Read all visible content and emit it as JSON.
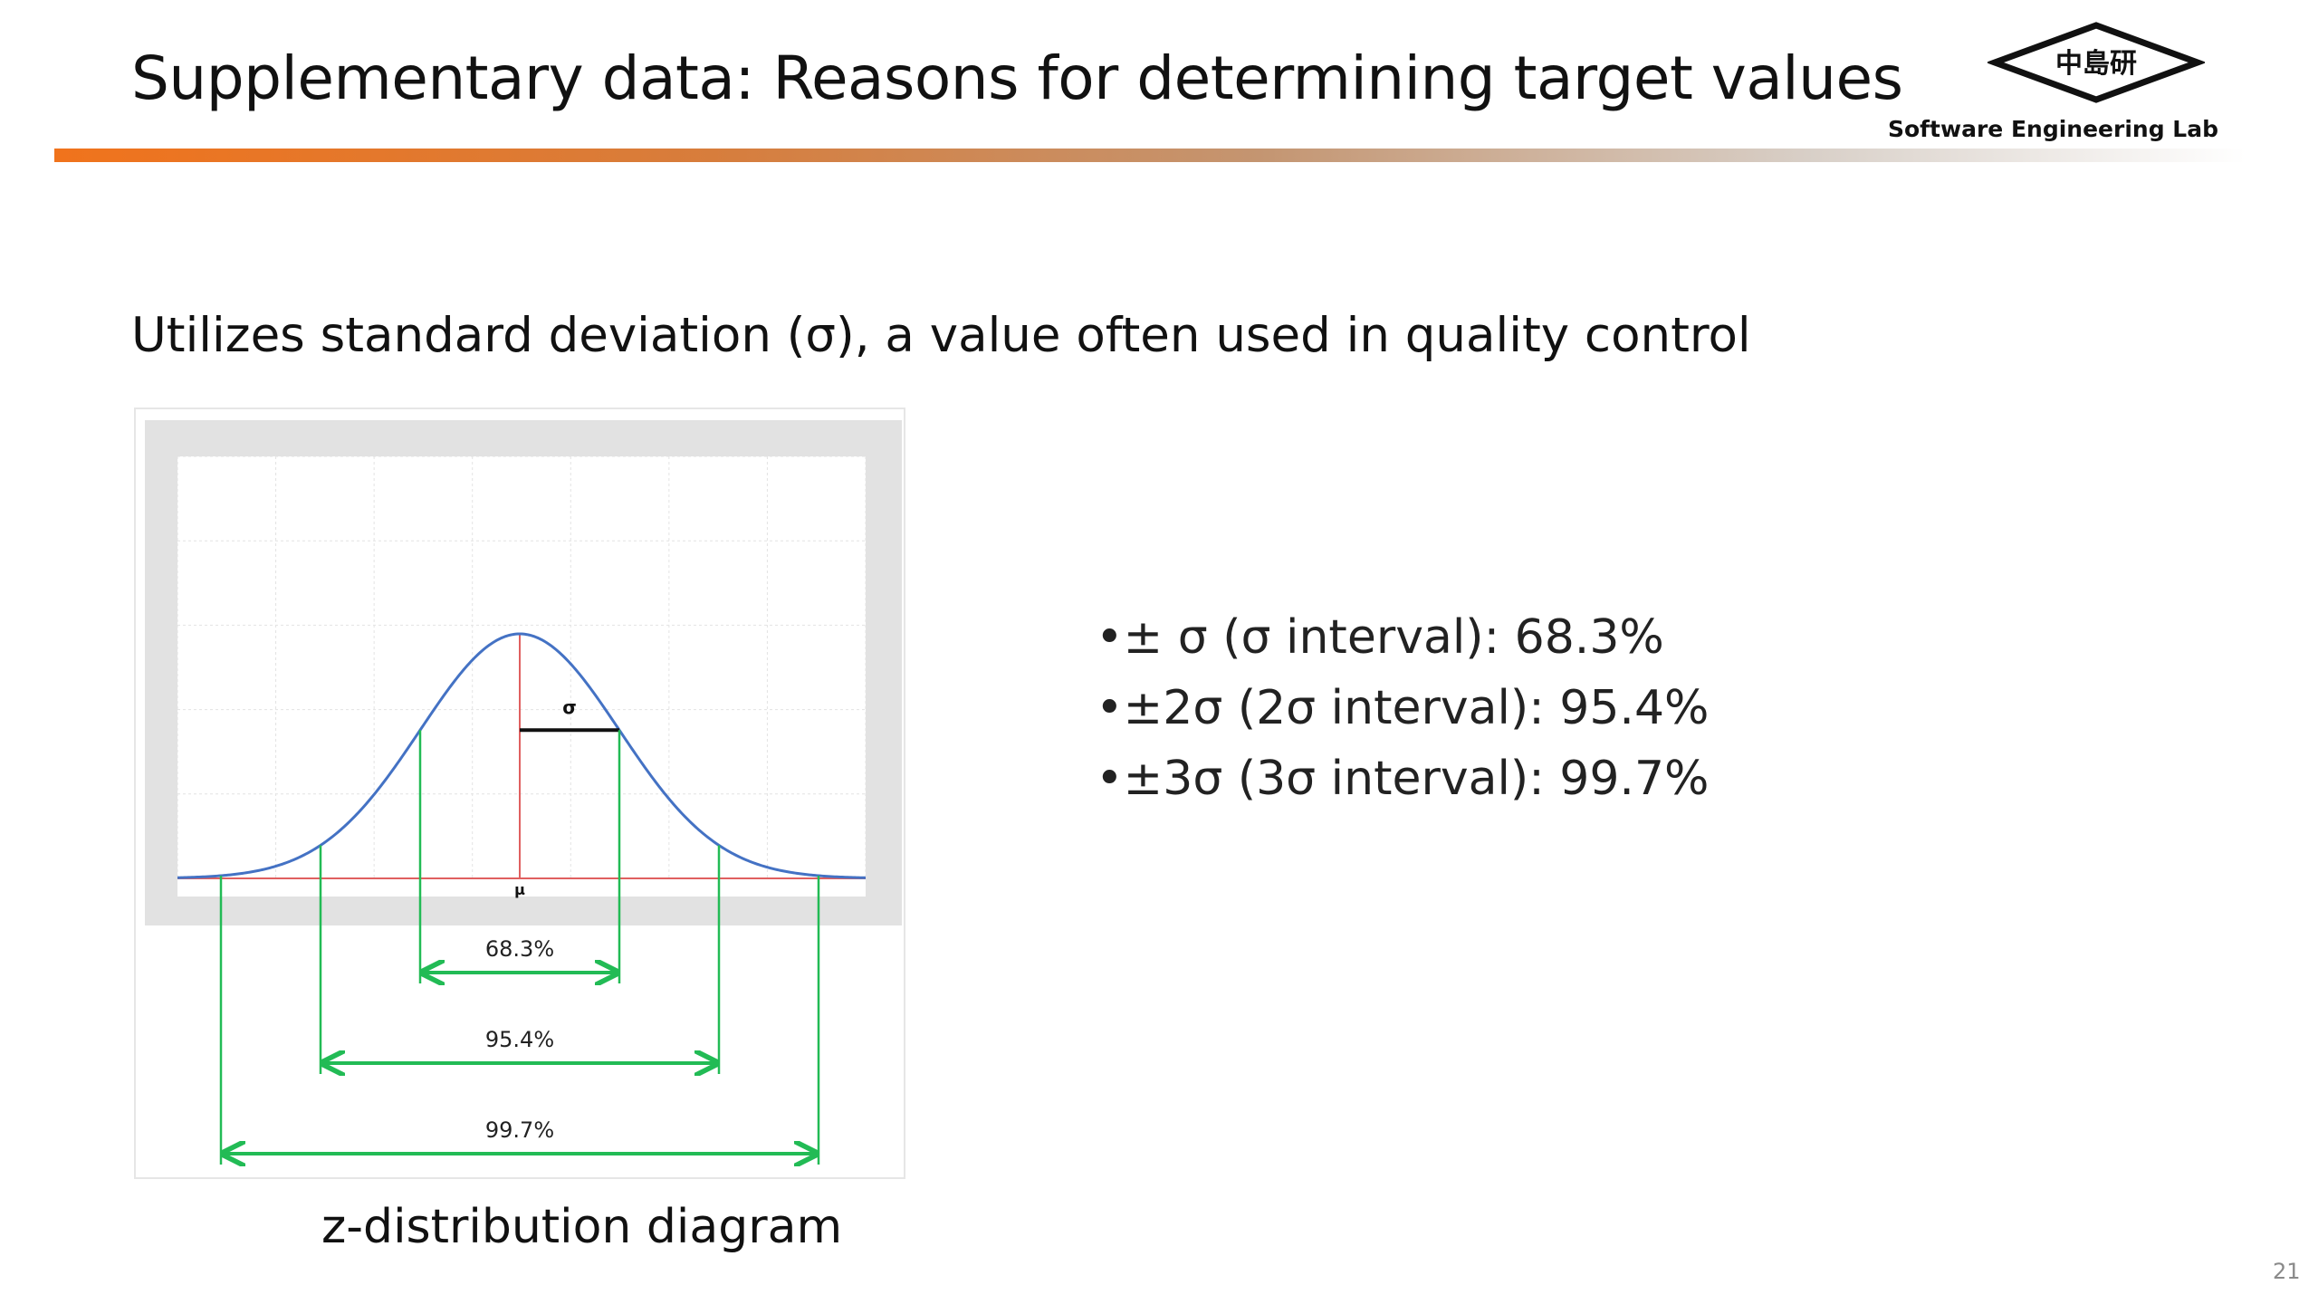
{
  "slide": {
    "title": "Supplementary data: Reasons for determining target values",
    "logo_text": "中島研",
    "lab_name": "Software Engineering Lab",
    "subtitle": "Utilizes standard deviation (σ), a value often used in quality control",
    "caption": "z-distribution diagram",
    "page_number": "21",
    "accent_color": "#f0731c"
  },
  "bullets": [
    "•± σ (σ interval): 68.3%",
    "•±2σ (2σ interval): 95.4%",
    "•±3σ (3σ interval): 99.7%"
  ],
  "diagram": {
    "sigma_label": "σ",
    "mu_label": "μ",
    "intervals": [
      {
        "label": "68.3%",
        "sigma": 1
      },
      {
        "label": "95.4%",
        "sigma": 2
      },
      {
        "label": "99.7%",
        "sigma": 3
      }
    ],
    "curve_color": "#4472c4",
    "interval_color": "#22bb55",
    "axis_color": "#e06060"
  }
}
